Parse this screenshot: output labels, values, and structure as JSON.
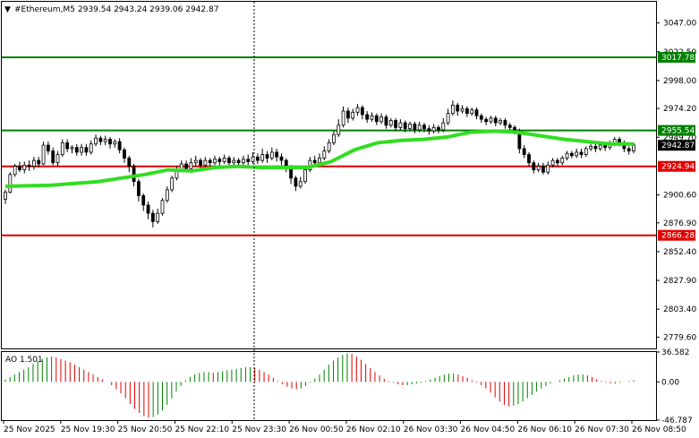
{
  "header": {
    "symbol": "#Ethereum,M5",
    "ohlc": "2939.54 2943.24 2939.06 2942.87"
  },
  "chart_data": {
    "type": "candlestick",
    "y_range": [
      2770,
      3065
    ],
    "price_ticks": [
      "3047.00",
      "3022.50",
      "2998.00",
      "2974.20",
      "2949.70",
      "2900.60",
      "2876.90",
      "2852.40",
      "2827.90",
      "2803.40",
      "2779.60"
    ],
    "time_labels": [
      "25 Nov 2025",
      "25 Nov 19:30",
      "25 Nov 20:50",
      "25 Nov 22:10",
      "25 Nov 23:30",
      "26 Nov 00:50",
      "26 Nov 02:10",
      "26 Nov 03:30",
      "26 Nov 04:50",
      "26 Nov 06:10",
      "26 Nov 07:30",
      "26 Nov 08:50"
    ],
    "current_price": "2942.87",
    "levels": [
      {
        "label": "3017.78",
        "price": 3017.78,
        "color": "#008000"
      },
      {
        "label": "2955.54",
        "price": 2955.54,
        "color": "#008000"
      },
      {
        "label": "2924.94",
        "price": 2924.94,
        "color": "#e00000"
      },
      {
        "label": "2866.28",
        "price": 2866.28,
        "color": "#e00000"
      }
    ],
    "moving_average": {
      "color": "#33dd22",
      "points": [
        [
          0,
          2908
        ],
        [
          20,
          2909
        ],
        [
          40,
          2912
        ],
        [
          60,
          2918
        ],
        [
          70,
          2922
        ],
        [
          80,
          2921
        ],
        [
          90,
          2924
        ],
        [
          100,
          2925
        ],
        [
          110,
          2924
        ],
        [
          120,
          2924
        ],
        [
          130,
          2924
        ],
        [
          140,
          2929
        ],
        [
          150,
          2939
        ],
        [
          160,
          2945
        ],
        [
          170,
          2947
        ],
        [
          180,
          2948
        ],
        [
          190,
          2950
        ],
        [
          200,
          2954
        ],
        [
          210,
          2955
        ],
        [
          220,
          2954
        ],
        [
          230,
          2951
        ],
        [
          240,
          2948
        ],
        [
          250,
          2946
        ],
        [
          260,
          2944
        ],
        [
          270,
          2944
        ]
      ]
    },
    "candles": [
      [
        2897,
        2903,
        2893,
        2905
      ],
      [
        2903,
        2918,
        2902,
        2920
      ],
      [
        2918,
        2925,
        2916,
        2927
      ],
      [
        2925,
        2922,
        2920,
        2929
      ],
      [
        2922,
        2926,
        2919,
        2929
      ],
      [
        2926,
        2925,
        2921,
        2930
      ],
      [
        2925,
        2930,
        2922,
        2933
      ],
      [
        2930,
        2927,
        2924,
        2933
      ],
      [
        2927,
        2943,
        2926,
        2946
      ],
      [
        2943,
        2938,
        2935,
        2946
      ],
      [
        2938,
        2928,
        2926,
        2941
      ],
      [
        2928,
        2935,
        2925,
        2938
      ],
      [
        2935,
        2945,
        2933,
        2948
      ],
      [
        2945,
        2940,
        2937,
        2948
      ],
      [
        2940,
        2941,
        2936,
        2943
      ],
      [
        2941,
        2937,
        2934,
        2944
      ],
      [
        2937,
        2941,
        2934,
        2944
      ],
      [
        2941,
        2937,
        2934,
        2944
      ],
      [
        2937,
        2944,
        2935,
        2947
      ],
      [
        2944,
        2949,
        2942,
        2952
      ],
      [
        2949,
        2946,
        2943,
        2951
      ],
      [
        2946,
        2948,
        2943,
        2951
      ],
      [
        2948,
        2944,
        2940,
        2950
      ],
      [
        2944,
        2946,
        2941,
        2948
      ],
      [
        2946,
        2939,
        2936,
        2949
      ],
      [
        2939,
        2932,
        2928,
        2941
      ],
      [
        2932,
        2925,
        2920,
        2934
      ],
      [
        2925,
        2912,
        2908,
        2927
      ],
      [
        2912,
        2900,
        2895,
        2914
      ],
      [
        2900,
        2892,
        2887,
        2902
      ],
      [
        2892,
        2885,
        2880,
        2895
      ],
      [
        2885,
        2878,
        2873,
        2888
      ],
      [
        2878,
        2885,
        2876,
        2889
      ],
      [
        2885,
        2896,
        2883,
        2898
      ],
      [
        2896,
        2905,
        2894,
        2908
      ],
      [
        2905,
        2915,
        2903,
        2917
      ],
      [
        2915,
        2922,
        2913,
        2925
      ],
      [
        2922,
        2927,
        2920,
        2930
      ],
      [
        2927,
        2923,
        2920,
        2930
      ],
      [
        2923,
        2928,
        2921,
        2932
      ],
      [
        2928,
        2930,
        2925,
        2934
      ],
      [
        2930,
        2926,
        2922,
        2932
      ],
      [
        2926,
        2930,
        2924,
        2933
      ],
      [
        2930,
        2928,
        2925,
        2932
      ],
      [
        2928,
        2931,
        2926,
        2934
      ],
      [
        2931,
        2929,
        2925,
        2933
      ],
      [
        2929,
        2932,
        2927,
        2935
      ],
      [
        2932,
        2928,
        2925,
        2934
      ],
      [
        2928,
        2930,
        2925,
        2933
      ],
      [
        2930,
        2928,
        2924,
        2932
      ],
      [
        2928,
        2931,
        2926,
        2934
      ],
      [
        2931,
        2929,
        2926,
        2935
      ],
      [
        2929,
        2933,
        2927,
        2937
      ],
      [
        2933,
        2930,
        2927,
        2936
      ],
      [
        2930,
        2935,
        2928,
        2940
      ],
      [
        2935,
        2932,
        2928,
        2938
      ],
      [
        2932,
        2937,
        2930,
        2941
      ],
      [
        2937,
        2933,
        2929,
        2940
      ],
      [
        2933,
        2930,
        2926,
        2936
      ],
      [
        2930,
        2924,
        2920,
        2932
      ],
      [
        2924,
        2915,
        2910,
        2926
      ],
      [
        2915,
        2908,
        2904,
        2917
      ],
      [
        2908,
        2912,
        2906,
        2916
      ],
      [
        2912,
        2922,
        2910,
        2925
      ],
      [
        2922,
        2930,
        2920,
        2933
      ],
      [
        2930,
        2928,
        2925,
        2934
      ],
      [
        2928,
        2932,
        2926,
        2936
      ],
      [
        2932,
        2938,
        2930,
        2942
      ],
      [
        2938,
        2945,
        2936,
        2948
      ],
      [
        2945,
        2952,
        2943,
        2955
      ],
      [
        2952,
        2960,
        2950,
        2965
      ],
      [
        2960,
        2972,
        2958,
        2976
      ],
      [
        2972,
        2966,
        2962,
        2975
      ],
      [
        2966,
        2971,
        2964,
        2974
      ],
      [
        2971,
        2975,
        2968,
        2978
      ],
      [
        2975,
        2969,
        2965,
        2977
      ],
      [
        2969,
        2965,
        2962,
        2972
      ],
      [
        2965,
        2968,
        2963,
        2971
      ],
      [
        2968,
        2963,
        2960,
        2970
      ],
      [
        2963,
        2967,
        2961,
        2970
      ],
      [
        2967,
        2960,
        2957,
        2969
      ],
      [
        2960,
        2964,
        2958,
        2966
      ],
      [
        2964,
        2958,
        2955,
        2966
      ],
      [
        2958,
        2962,
        2956,
        2965
      ],
      [
        2962,
        2957,
        2954,
        2964
      ],
      [
        2957,
        2961,
        2955,
        2963
      ],
      [
        2961,
        2956,
        2953,
        2963
      ],
      [
        2956,
        2960,
        2954,
        2963
      ],
      [
        2960,
        2957,
        2954,
        2962
      ],
      [
        2957,
        2955,
        2952,
        2960
      ],
      [
        2955,
        2958,
        2953,
        2961
      ],
      [
        2958,
        2956,
        2953,
        2960
      ],
      [
        2956,
        2962,
        2954,
        2966
      ],
      [
        2962,
        2970,
        2960,
        2974
      ],
      [
        2970,
        2977,
        2968,
        2981
      ],
      [
        2977,
        2972,
        2968,
        2979
      ],
      [
        2972,
        2974,
        2970,
        2977
      ],
      [
        2974,
        2970,
        2967,
        2976
      ],
      [
        2970,
        2973,
        2968,
        2975
      ],
      [
        2973,
        2968,
        2965,
        2975
      ],
      [
        2968,
        2965,
        2962,
        2970
      ],
      [
        2965,
        2963,
        2960,
        2967
      ],
      [
        2963,
        2966,
        2961,
        2968
      ],
      [
        2966,
        2962,
        2959,
        2968
      ],
      [
        2962,
        2964,
        2960,
        2966
      ],
      [
        2964,
        2960,
        2957,
        2966
      ],
      [
        2960,
        2958,
        2955,
        2962
      ],
      [
        2958,
        2955,
        2952,
        2960
      ],
      [
        2955,
        2940,
        2936,
        2957
      ],
      [
        2940,
        2935,
        2932,
        2943
      ],
      [
        2935,
        2928,
        2925,
        2937
      ],
      [
        2928,
        2922,
        2919,
        2930
      ],
      [
        2922,
        2925,
        2920,
        2928
      ],
      [
        2925,
        2920,
        2918,
        2928
      ],
      [
        2920,
        2926,
        2918,
        2929
      ],
      [
        2926,
        2930,
        2924,
        2932
      ],
      [
        2930,
        2928,
        2925,
        2932
      ],
      [
        2928,
        2932,
        2926,
        2934
      ],
      [
        2932,
        2936,
        2930,
        2938
      ],
      [
        2936,
        2934,
        2932,
        2938
      ],
      [
        2934,
        2937,
        2932,
        2940
      ],
      [
        2937,
        2935,
        2932,
        2940
      ],
      [
        2935,
        2940,
        2933,
        2942
      ],
      [
        2940,
        2942,
        2938,
        2944
      ],
      [
        2942,
        2940,
        2937,
        2944
      ],
      [
        2940,
        2943,
        2938,
        2946
      ],
      [
        2943,
        2941,
        2938,
        2945
      ],
      [
        2941,
        2944,
        2939,
        2947
      ],
      [
        2944,
        2948,
        2942,
        2950
      ],
      [
        2948,
        2945,
        2942,
        2950
      ],
      [
        2945,
        2940,
        2937,
        2947
      ],
      [
        2940,
        2938,
        2935,
        2942
      ],
      [
        2938,
        2943,
        2936,
        2945
      ]
    ],
    "ao": {
      "label": "AO 1.501",
      "ticks": [
        "36.582",
        "0.00",
        "-46.787"
      ],
      "up_color": "#008000",
      "down_color": "#e00000",
      "values": [
        3,
        6,
        9,
        12,
        15,
        18,
        22,
        26,
        28,
        30,
        31,
        30,
        28,
        26,
        24,
        21,
        18,
        15,
        12,
        9,
        6,
        3,
        0,
        -4,
        -9,
        -14,
        -20,
        -27,
        -33,
        -38,
        -42,
        -44,
        -43,
        -40,
        -35,
        -28,
        -20,
        -12,
        -5,
        2,
        6,
        9,
        11,
        12,
        12,
        11,
        12,
        13,
        14,
        15,
        16,
        17,
        18,
        18,
        17,
        15,
        12,
        9,
        5,
        1,
        -3,
        -6,
        -8,
        -9,
        -8,
        -5,
        -1,
        4,
        9,
        15,
        21,
        26,
        30,
        33,
        35,
        34,
        31,
        27,
        22,
        17,
        12,
        8,
        4,
        1,
        -1,
        -3,
        -4,
        -4,
        -3,
        -2,
        -1,
        1,
        3,
        5,
        7,
        9,
        10,
        10,
        9,
        7,
        5,
        2,
        -1,
        -4,
        -8,
        -13,
        -19,
        -24,
        -28,
        -30,
        -29,
        -27,
        -24,
        -20,
        -16,
        -12,
        -8,
        -5,
        -2,
        0,
        2,
        4,
        6,
        8,
        9,
        9,
        8,
        6,
        3,
        1,
        -1,
        -2,
        -2,
        -1,
        0,
        1,
        2
      ]
    }
  }
}
